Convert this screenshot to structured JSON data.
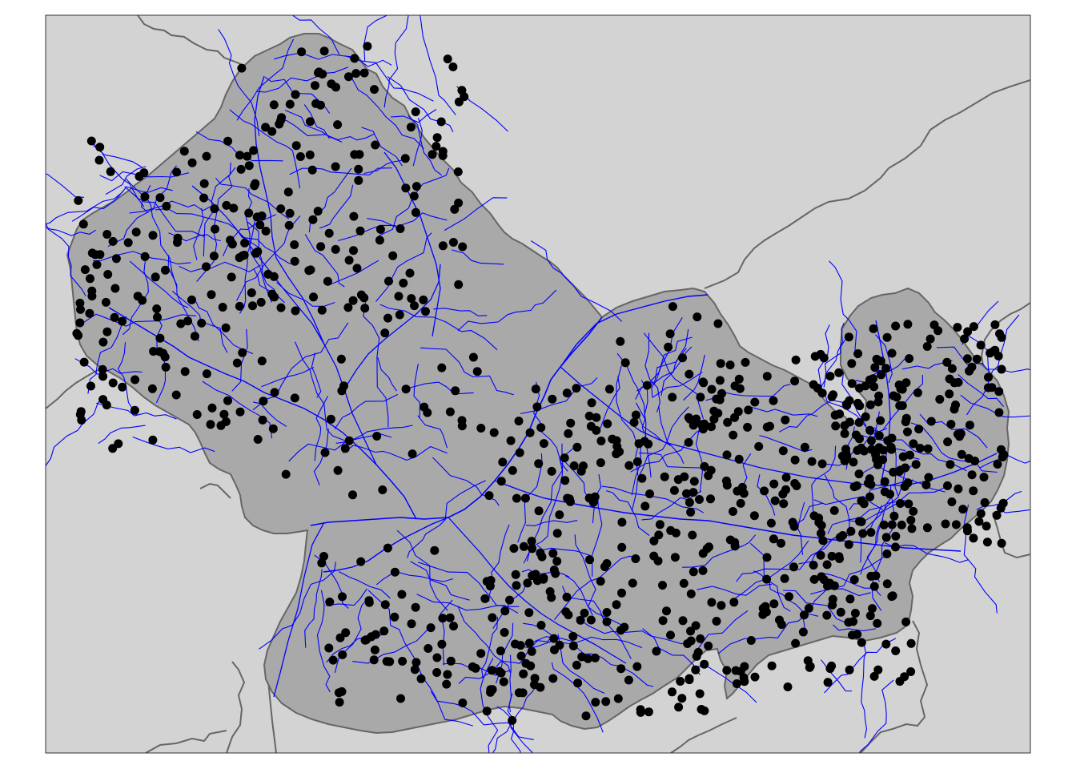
{
  "map": {
    "type": "choropleth-with-points",
    "panel_background": "#d3d3d3",
    "region_fill": "#a9a9a9",
    "border_color": "#666666",
    "river_color": "#0000ff",
    "point_color": "#000000",
    "frame_color": "#333333",
    "layers": [
      "background-regions",
      "study-area",
      "rivers",
      "sample-points"
    ],
    "legend": "none",
    "title": ""
  }
}
